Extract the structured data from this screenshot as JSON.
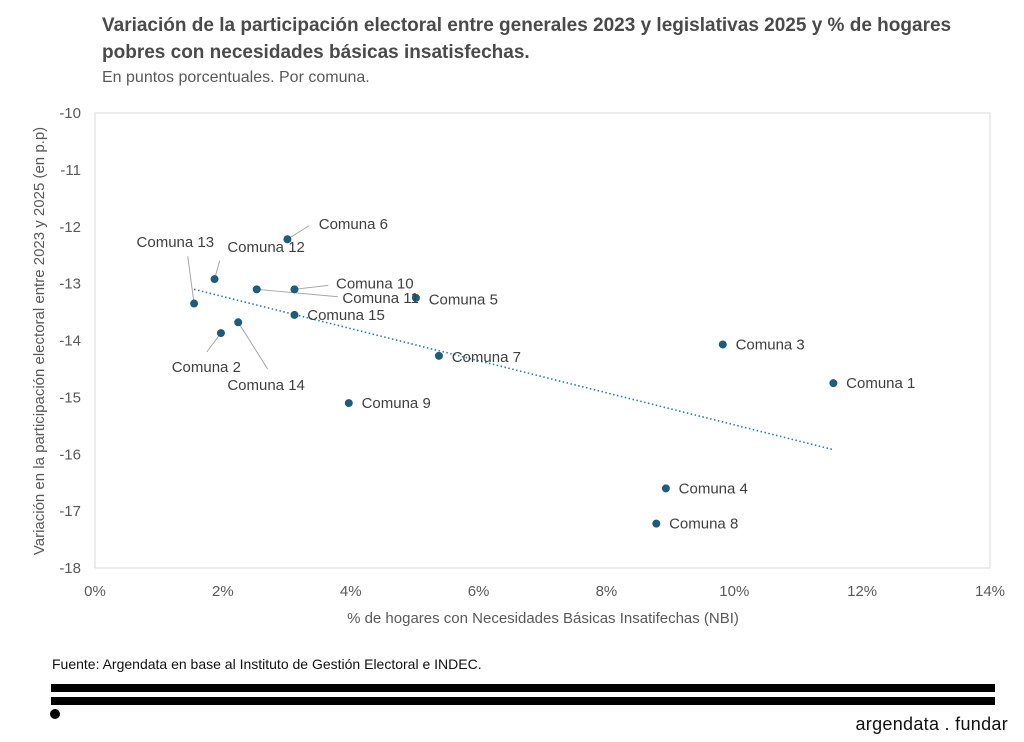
{
  "header": {
    "title": "Variación de la participación electoral entre generales 2023 y legislativas 2025 y % de hogares pobres con necesidades básicas insatisfechas.",
    "subtitle": "En puntos porcentuales. Por comuna."
  },
  "footer": {
    "source": "Fuente: Argendata en base al Instituto de Gestión Electoral e INDEC.",
    "brand": "argendata . fundar"
  },
  "chart_data": {
    "type": "scatter",
    "xlabel": "% de hogares con Necesidades Básicas Insatifechas (NBI)",
    "ylabel": "Variación en la participación electoral entre 2023 y 2025 (en p.p)",
    "xlim": [
      0,
      14
    ],
    "ylim": [
      -18,
      -10
    ],
    "xticks": [
      0,
      2,
      4,
      6,
      8,
      10,
      12,
      14
    ],
    "xtick_labels": [
      "0%",
      "2%",
      "4%",
      "6%",
      "8%",
      "10%",
      "12%",
      "14%"
    ],
    "yticks": [
      -18,
      -17,
      -16,
      -15,
      -14,
      -13,
      -12,
      -11,
      -10
    ],
    "ytick_labels": [
      "-18",
      "-17",
      "-16",
      "-15",
      "-14",
      "-13",
      "-12",
      "-11",
      "-10"
    ],
    "grid": false,
    "point_color": "#1f5b7a",
    "trend_color": "#2a7fa0",
    "trendline": {
      "x": [
        1.55,
        11.55
      ],
      "y": [
        -13.1,
        -15.92
      ]
    },
    "points": [
      {
        "name": "Comuna 1",
        "x": 11.55,
        "y": -14.75,
        "label_x": 11.75,
        "label_y": -14.75,
        "leader": false
      },
      {
        "name": "Comuna 2",
        "x": 1.97,
        "y": -13.87,
        "label_x": 1.2,
        "label_y": -14.47,
        "leader": true,
        "leader_end_x": 1.75,
        "leader_end_y": -14.2
      },
      {
        "name": "Comuna 3",
        "x": 9.82,
        "y": -14.07,
        "label_x": 10.02,
        "label_y": -14.07,
        "leader": false
      },
      {
        "name": "Comuna 4",
        "x": 8.93,
        "y": -16.6,
        "label_x": 9.13,
        "label_y": -16.6,
        "leader": false
      },
      {
        "name": "Comuna 5",
        "x": 5.02,
        "y": -13.25,
        "label_x": 5.22,
        "label_y": -13.28,
        "leader": false
      },
      {
        "name": "Comuna 6",
        "x": 3.01,
        "y": -12.22,
        "label_x": 3.5,
        "label_y": -11.95,
        "leader": true,
        "leader_end_x": 3.35,
        "leader_end_y": -11.98
      },
      {
        "name": "Comuna 7",
        "x": 5.38,
        "y": -14.27,
        "label_x": 5.58,
        "label_y": -14.29,
        "leader": false
      },
      {
        "name": "Comuna 8",
        "x": 8.78,
        "y": -17.22,
        "label_x": 8.98,
        "label_y": -17.22,
        "leader": false
      },
      {
        "name": "Comuna 9",
        "x": 3.97,
        "y": -15.1,
        "label_x": 4.17,
        "label_y": -15.1,
        "leader": false
      },
      {
        "name": "Comuna 10",
        "x": 3.12,
        "y": -13.1,
        "label_x": 3.77,
        "label_y": -13.0,
        "leader": true,
        "leader_end_x": 3.65,
        "leader_end_y": -13.03
      },
      {
        "name": "Comuna 11",
        "x": 2.53,
        "y": -13.1,
        "label_x": 3.87,
        "label_y": -13.25,
        "leader": true,
        "leader_end_x": 3.8,
        "leader_end_y": -13.23
      },
      {
        "name": "Comuna 12",
        "x": 1.87,
        "y": -12.92,
        "label_x": 2.07,
        "label_y": -12.36,
        "leader": true,
        "leader_end_x": 1.95,
        "leader_end_y": -12.6
      },
      {
        "name": "Comuna 13",
        "x": 1.55,
        "y": -13.35,
        "label_x": 0.65,
        "label_y": -12.27,
        "leader": true,
        "leader_end_x": 1.45,
        "leader_end_y": -12.52
      },
      {
        "name": "Comuna 14",
        "x": 2.24,
        "y": -13.68,
        "label_x": 2.07,
        "label_y": -14.78,
        "leader": true,
        "leader_end_x": 2.7,
        "leader_end_y": -14.5
      },
      {
        "name": "Comuna 15",
        "x": 3.12,
        "y": -13.55,
        "label_x": 3.32,
        "label_y": -13.55,
        "leader": false
      }
    ]
  }
}
